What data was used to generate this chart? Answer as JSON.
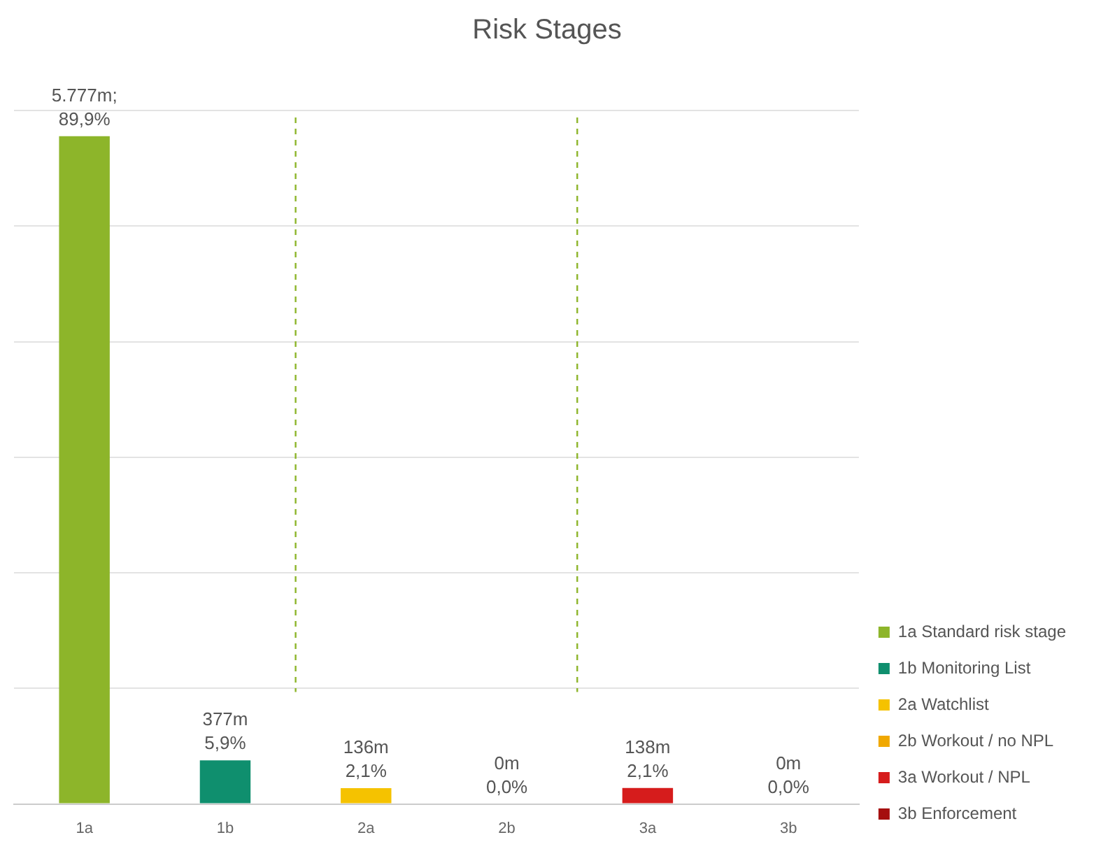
{
  "chart_data": {
    "type": "bar",
    "title": "Risk Stages",
    "categories": [
      "1a",
      "1b",
      "2a",
      "2b",
      "3a",
      "3b"
    ],
    "series": [
      {
        "name": "1a Standard risk stage",
        "color": "#8db52a",
        "values": [
          5777,
          null,
          null,
          null,
          null,
          null
        ],
        "value_labels": [
          "5.777m;",
          null,
          null,
          null,
          null,
          null
        ]
      },
      {
        "name": "1b Monitoring List",
        "color": "#0f8f6e",
        "values": [
          null,
          377,
          null,
          null,
          null,
          null
        ],
        "value_labels": [
          null,
          "377m",
          null,
          null,
          null,
          null
        ]
      },
      {
        "name": "2a Watchlist",
        "color": "#f5c200",
        "values": [
          null,
          null,
          136,
          null,
          null,
          null
        ],
        "value_labels": [
          null,
          null,
          "136m",
          null,
          null,
          null
        ]
      },
      {
        "name": "2b Workout / no NPL",
        "color": "#f0a800",
        "values": [
          null,
          null,
          null,
          0,
          null,
          null
        ],
        "value_labels": [
          null,
          null,
          null,
          "0m",
          null,
          null
        ]
      },
      {
        "name": "3a Workout / NPL",
        "color": "#d61c1c",
        "values": [
          null,
          null,
          null,
          null,
          138,
          null
        ],
        "value_labels": [
          null,
          null,
          null,
          null,
          "138m",
          null
        ]
      },
      {
        "name": "3b Enforcement",
        "color": "#a50f0f",
        "values": [
          null,
          null,
          null,
          null,
          null,
          0
        ],
        "value_labels": [
          null,
          null,
          null,
          null,
          null,
          "0m"
        ]
      }
    ],
    "annotations": [
      {
        "text": "89,9%",
        "x": "1a",
        "y": 5777
      },
      {
        "text": "5,9%",
        "x": "1b",
        "y": 377
      },
      {
        "text": "2,1%",
        "x": "2a",
        "y": 136
      },
      {
        "text": "0,0%",
        "x": "2b",
        "y": 0
      },
      {
        "text": "2,1%",
        "x": "3a",
        "y": 138
      },
      {
        "text": "0,0%",
        "x": "3b",
        "y": 0
      }
    ],
    "tick_labels": "x",
    "grid": "y",
    "legend": "right"
  }
}
